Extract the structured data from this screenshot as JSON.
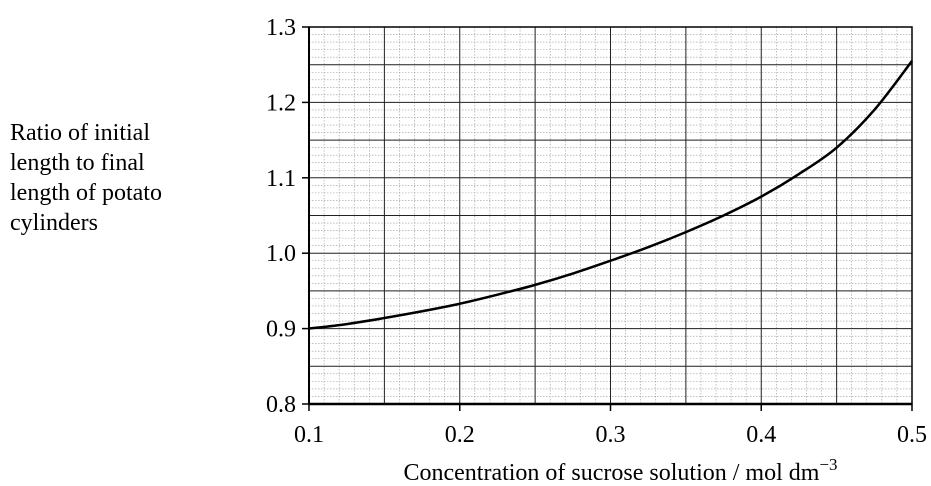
{
  "chart_data": {
    "type": "line",
    "title": "",
    "ylabel_lines": [
      "Ratio of initial",
      "length to final",
      "length of potato",
      "cylinders"
    ],
    "xlabel": "Concentration of sucrose solution / mol dm",
    "xlabel_unit_exponent": "−3",
    "xlim": [
      0.1,
      0.5
    ],
    "ylim": [
      0.8,
      1.3
    ],
    "x_ticks": [
      "0.1",
      "0.2",
      "0.3",
      "0.4",
      "0.5"
    ],
    "y_ticks": [
      "0.8",
      "0.9",
      "1.0",
      "1.1",
      "1.2",
      "1.3"
    ],
    "grid": true,
    "series": [
      {
        "x": [
          0.1,
          0.125,
          0.15,
          0.175,
          0.2,
          0.225,
          0.25,
          0.275,
          0.3,
          0.325,
          0.35,
          0.375,
          0.4,
          0.425,
          0.45,
          0.475,
          0.5
        ],
        "values": [
          0.9,
          0.906,
          0.914,
          0.923,
          0.933,
          0.945,
          0.958,
          0.973,
          0.99,
          1.008,
          1.028,
          1.05,
          1.075,
          1.105,
          1.14,
          1.19,
          1.255
        ]
      }
    ]
  }
}
